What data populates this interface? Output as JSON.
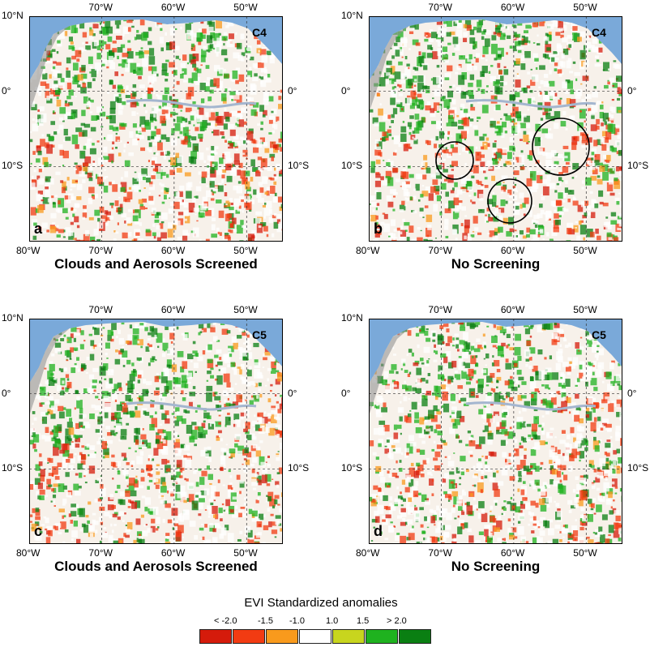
{
  "panels": [
    {
      "letter": "a",
      "version": "C4",
      "caption": "Clouds and Aerosols Screened",
      "circles": false
    },
    {
      "letter": "b",
      "version": "C4",
      "caption": "No Screening",
      "circles": true
    },
    {
      "letter": "c",
      "version": "C5",
      "caption": "Clouds and Aerosols Screened",
      "circles": false
    },
    {
      "letter": "d",
      "version": "C5",
      "caption": "No Screening",
      "circles": false
    }
  ],
  "axes": {
    "top_lon": [
      "70°W",
      "60°W",
      "50°W"
    ],
    "bottom_lon": [
      "80°W",
      "70°W",
      "60°W",
      "50°W"
    ],
    "left_lat": [
      "10°N",
      "0°",
      "10°S"
    ],
    "right_lat": [
      "0°",
      "10°S"
    ]
  },
  "legend": {
    "title": "EVI Standardized anomalies",
    "labels": [
      "< -2.0",
      "-1.5",
      "-1.0",
      "1.0",
      "1.5",
      "> 2.0"
    ],
    "colors": [
      "#d51b0b",
      "#f23b12",
      "#f99a1c",
      "#ffffff",
      "#c8d51e",
      "#1fb21f",
      "#0a7f12"
    ]
  },
  "colors": {
    "ocean": "#7aa9d9",
    "land": "#f7f1ea",
    "river": "#a4b6cf",
    "andes": "#8a8a8a"
  }
}
